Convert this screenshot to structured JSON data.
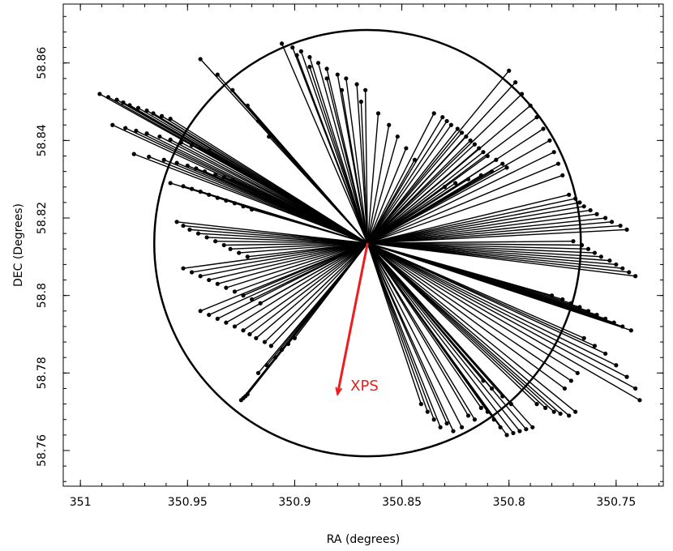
{
  "chart_data": {
    "type": "scatter",
    "title": "",
    "xlabel": "RA (degrees)",
    "ylabel": "DEC (Degrees)",
    "xlim": [
      351.008,
      350.728
    ],
    "ylim": [
      58.7508,
      58.8752
    ],
    "x_reversed": true,
    "x_ticks": [
      "351",
      "350.95",
      "350.9",
      "350.85",
      "350.8",
      "350.75"
    ],
    "x_tick_values": [
      351.0,
      350.95,
      350.9,
      350.85,
      350.8,
      350.75
    ],
    "y_ticks": [
      "58.76",
      "58.78",
      "58.8",
      "58.82",
      "58.84",
      "58.86"
    ],
    "y_tick_values": [
      58.76,
      58.78,
      58.8,
      58.82,
      58.84,
      58.86
    ],
    "grid": false,
    "center": {
      "x": 350.866,
      "y": 58.8135
    },
    "circle": {
      "center_x": 350.866,
      "center_y": 58.8135,
      "radius_y": 0.055
    },
    "vectors_note_color": "#000000",
    "xps_vector": {
      "x0": 350.866,
      "y0": 58.8135,
      "x1": 350.88,
      "y1": 58.7745,
      "color": "#ee1c1c"
    },
    "annotation": {
      "text": "XPS",
      "x": 350.874,
      "y": 58.7755,
      "color": "#ee1c1c"
    },
    "series": [
      {
        "name": "",
        "x": [
          350.991,
          350.987,
          350.983,
          350.98,
          350.977,
          350.973,
          350.969,
          350.966,
          350.962,
          350.958,
          350.985,
          350.979,
          350.974,
          350.969,
          350.963,
          350.958,
          350.953,
          350.948,
          350.944,
          350.94,
          350.975,
          350.968,
          350.961,
          350.955,
          350.95,
          350.946,
          350.942,
          350.937,
          350.933,
          350.929,
          350.958,
          350.952,
          350.948,
          350.944,
          350.94,
          350.936,
          350.932,
          350.928,
          350.924,
          350.92,
          350.955,
          350.952,
          350.949,
          350.945,
          350.941,
          350.937,
          350.933,
          350.93,
          350.926,
          350.922,
          350.952,
          350.948,
          350.944,
          350.94,
          350.936,
          350.932,
          350.928,
          350.924,
          350.92,
          350.916,
          350.944,
          350.94,
          350.936,
          350.932,
          350.928,
          350.924,
          350.921,
          350.918,
          350.914,
          350.911,
          350.925,
          350.924,
          350.923,
          350.922,
          350.917,
          350.913,
          350.909,
          350.906,
          350.903,
          350.9,
          350.944,
          350.936,
          350.929,
          350.922,
          350.917,
          350.912,
          350.906,
          350.901,
          350.897,
          350.893,
          350.889,
          350.885,
          350.88,
          350.876,
          350.871,
          350.867,
          350.899,
          350.893,
          350.885,
          350.878,
          350.869,
          350.861,
          350.856,
          350.852,
          350.848,
          350.844,
          350.835,
          350.831,
          350.829,
          350.827,
          350.824,
          350.822,
          350.82,
          350.818,
          350.816,
          350.814,
          350.812,
          350.81,
          350.806,
          350.803,
          350.801,
          350.808,
          350.813,
          350.819,
          350.825,
          350.83,
          350.8,
          350.797,
          350.794,
          350.79,
          350.787,
          350.784,
          350.781,
          350.779,
          350.777,
          350.775,
          350.772,
          350.769,
          350.767,
          350.765,
          350.762,
          350.759,
          350.755,
          350.752,
          350.748,
          350.745,
          350.77,
          350.766,
          350.763,
          350.76,
          350.757,
          350.753,
          350.75,
          350.747,
          350.744,
          350.741,
          350.78,
          350.775,
          350.771,
          350.767,
          350.763,
          350.759,
          350.755,
          350.751,
          350.747,
          350.743,
          350.739,
          350.741,
          350.745,
          350.75,
          350.755,
          350.76,
          350.765,
          350.768,
          350.771,
          350.774,
          350.787,
          350.783,
          350.779,
          350.776,
          350.772,
          350.769,
          350.789,
          350.792,
          350.795,
          350.798,
          350.801,
          350.804,
          350.807,
          350.81,
          350.813,
          350.816,
          350.819,
          350.822,
          350.826,
          350.829,
          350.832,
          350.835,
          350.838,
          350.841,
          350.799,
          350.803,
          350.808,
          350.812
        ],
        "y": [
          58.852,
          58.8512,
          58.8505,
          58.8498,
          58.8491,
          58.8484,
          58.8477,
          58.847,
          58.8463,
          58.8456,
          58.844,
          58.8432,
          58.8425,
          58.8418,
          58.841,
          58.8402,
          58.8395,
          58.8388,
          58.838,
          58.8373,
          58.8365,
          58.8358,
          58.835,
          58.8342,
          58.8335,
          58.8328,
          58.832,
          58.8312,
          58.8305,
          58.8298,
          58.829,
          58.8282,
          58.8275,
          58.8268,
          58.826,
          58.8252,
          58.8245,
          58.8238,
          58.823,
          58.8222,
          58.819,
          58.818,
          58.817,
          58.816,
          58.815,
          58.814,
          58.813,
          58.812,
          58.811,
          58.81,
          58.807,
          58.806,
          58.805,
          58.804,
          58.803,
          58.802,
          58.801,
          58.8,
          58.799,
          58.798,
          58.796,
          58.795,
          58.794,
          58.793,
          58.792,
          58.791,
          58.79,
          58.789,
          58.788,
          58.787,
          58.773,
          58.7735,
          58.774,
          58.7745,
          58.78,
          58.782,
          58.784,
          58.786,
          58.7875,
          58.789,
          58.861,
          58.857,
          58.853,
          58.849,
          58.845,
          58.841,
          58.865,
          58.864,
          58.863,
          58.8615,
          58.86,
          58.8585,
          58.857,
          58.856,
          58.8545,
          58.853,
          58.862,
          58.859,
          58.856,
          58.853,
          58.85,
          58.847,
          58.844,
          58.841,
          58.838,
          58.835,
          58.847,
          58.846,
          58.845,
          58.844,
          58.843,
          58.842,
          58.841,
          58.84,
          58.839,
          58.838,
          58.837,
          58.836,
          58.835,
          58.834,
          58.833,
          58.832,
          58.831,
          58.83,
          58.829,
          58.828,
          58.858,
          58.855,
          58.852,
          58.849,
          58.846,
          58.843,
          58.84,
          58.837,
          58.834,
          58.831,
          58.826,
          58.825,
          58.824,
          58.823,
          58.822,
          58.821,
          58.82,
          58.819,
          58.818,
          58.817,
          58.814,
          58.813,
          58.812,
          58.811,
          58.81,
          58.809,
          58.808,
          58.807,
          58.806,
          58.805,
          58.8,
          58.799,
          58.798,
          58.797,
          58.796,
          58.795,
          58.794,
          58.793,
          58.792,
          58.791,
          58.773,
          58.776,
          58.779,
          58.782,
          58.785,
          58.787,
          58.789,
          58.78,
          58.778,
          58.776,
          58.772,
          58.771,
          58.77,
          58.7695,
          58.769,
          58.77,
          58.766,
          58.7655,
          58.765,
          58.7645,
          58.764,
          58.766,
          58.768,
          58.77,
          58.771,
          58.768,
          58.769,
          58.766,
          58.765,
          58.767,
          58.766,
          58.768,
          58.77,
          58.772,
          58.772,
          58.774,
          58.776,
          58.778
        ]
      }
    ]
  }
}
